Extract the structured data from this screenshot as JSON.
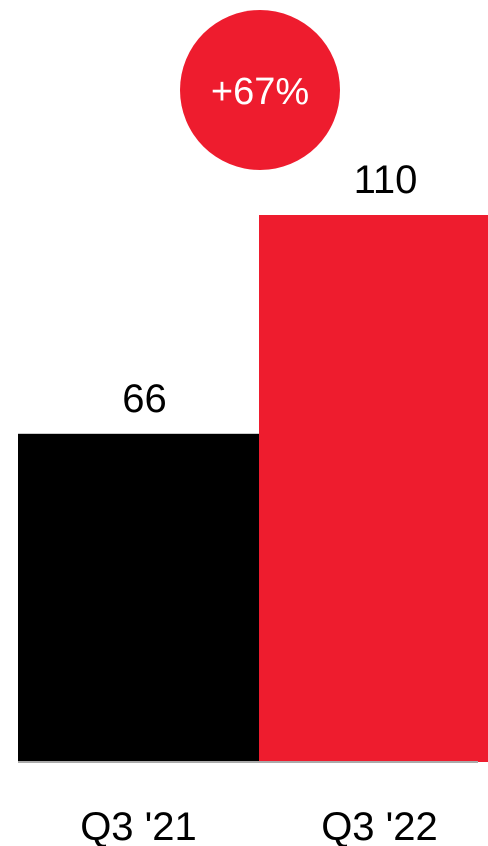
{
  "chart_data": {
    "type": "bar",
    "title": "",
    "xlabel": "",
    "ylabel": "",
    "categories": [
      "Q3 '21",
      "Q3 '22"
    ],
    "values": [
      66,
      110
    ],
    "value_labels": [
      "66",
      "110"
    ],
    "bar_colors": [
      "#000000",
      "#ee1c2e"
    ],
    "ylim": [
      0,
      110
    ],
    "grid": false,
    "annotation": {
      "text": "+67%",
      "color": "#ee1c2e"
    }
  }
}
